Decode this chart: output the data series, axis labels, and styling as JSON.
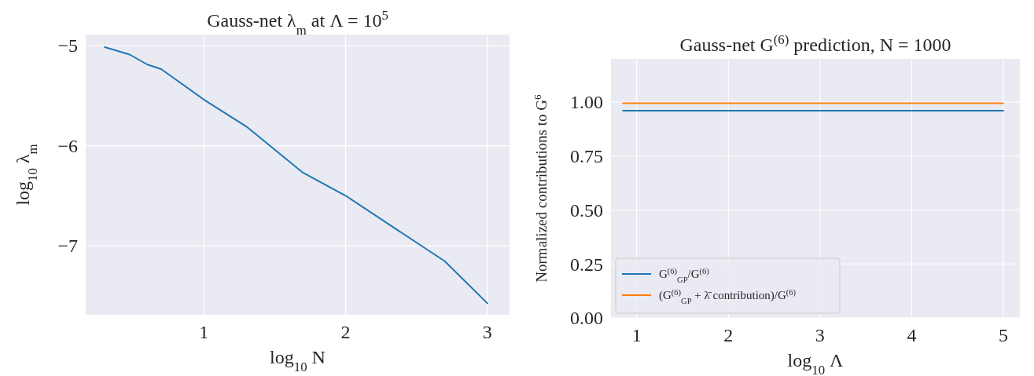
{
  "chart_data": [
    {
      "type": "line",
      "title": "Gauss-net λ$_{m}$ at Λ = 10$^{5}$",
      "xlabel": "log$_{10}$ N",
      "ylabel": "log$_{10}$ λ$_{m}$",
      "x": [
        0.301,
        0.477,
        0.602,
        0.699,
        1,
        1.301,
        1.699,
        2,
        2.699,
        3
      ],
      "series": [
        {
          "color": "#1f77b4",
          "values": [
            -5.015,
            -5.09,
            -5.19,
            -5.235,
            -5.54,
            -5.81,
            -6.27,
            -6.5,
            -7.155,
            -7.575
          ]
        }
      ],
      "xlim": [
        0.167,
        3.156
      ],
      "xticks": [
        1,
        2,
        3
      ],
      "ylim": [
        -7.69,
        -4.89
      ],
      "yticks": [
        {
          "value": -7,
          "label": "−7"
        },
        {
          "value": -6,
          "label": "−6"
        },
        {
          "value": -5,
          "label": "−5"
        }
      ],
      "grid": true,
      "legend": false
    },
    {
      "type": "line",
      "title": "Gauss-net G$^{(6)}$ prediction, N = 1000",
      "xlabel": "log$_{10}$ Λ",
      "ylabel": "Normalized contributions to G$^{6}$",
      "x": [
        0.85,
        5
      ],
      "series": [
        {
          "name": "G$^{(6)}$$_{GP}$/G$^{(6)}$",
          "color": "#1f77b4",
          "values": [
            0.96,
            0.96
          ]
        },
        {
          "name": "(G$^{(6)}$$_{GP}$ + λ̄ contribution)/G$^{(6)}$",
          "color": "#ff7f0e",
          "values": [
            0.995,
            0.995
          ]
        }
      ],
      "xlim": [
        0.72,
        5.18
      ],
      "xticks": [
        1,
        2,
        3,
        4,
        5
      ],
      "ylim": [
        0,
        1.2
      ],
      "yticks": [
        {
          "value": 0,
          "label": "0.00"
        },
        {
          "value": 0.25,
          "label": "0.25"
        },
        {
          "value": 0.5,
          "label": "0.50"
        },
        {
          "value": 0.75,
          "label": "0.75"
        },
        {
          "value": 1,
          "label": "1.00"
        }
      ],
      "grid": true,
      "legend": "bottom left"
    }
  ]
}
